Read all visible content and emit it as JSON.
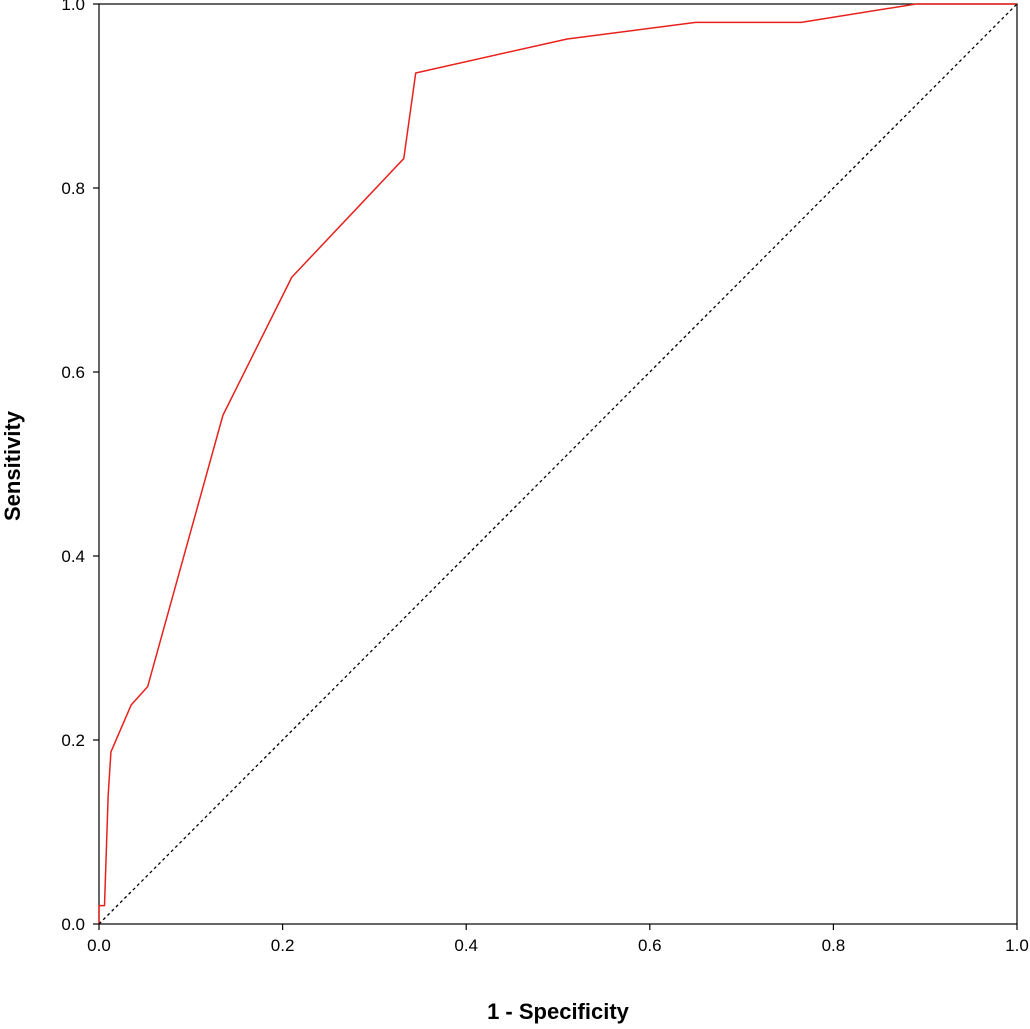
{
  "chart_data": {
    "type": "line",
    "title": "",
    "xlabel": "1 - Specificity",
    "ylabel": "Sensitivity",
    "xlim": [
      0,
      1
    ],
    "ylim": [
      0,
      1
    ],
    "x_ticks": [
      "0.0",
      "0.2",
      "0.4",
      "0.6",
      "0.8",
      "1.0"
    ],
    "y_ticks": [
      "0.0",
      "0.2",
      "0.4",
      "0.6",
      "0.8",
      "1.0"
    ],
    "grid": false,
    "legend": "none",
    "series": [
      {
        "color": "#e8211d",
        "style": "solid",
        "x": [
          0.0,
          0.0,
          0.006,
          0.008,
          0.01,
          0.013,
          0.035,
          0.053,
          0.135,
          0.21,
          0.332,
          0.345,
          0.51,
          0.65,
          0.765,
          0.89,
          1.0
        ],
        "y": [
          0.0,
          0.02,
          0.02,
          0.08,
          0.14,
          0.187,
          0.238,
          0.258,
          0.553,
          0.703,
          0.832,
          0.925,
          0.962,
          0.98,
          0.98,
          1.0,
          1.0
        ]
      },
      {
        "color": "#000000",
        "style": "dotted",
        "x": [
          0.0,
          1.0
        ],
        "y": [
          0.0,
          1.0
        ]
      }
    ]
  }
}
